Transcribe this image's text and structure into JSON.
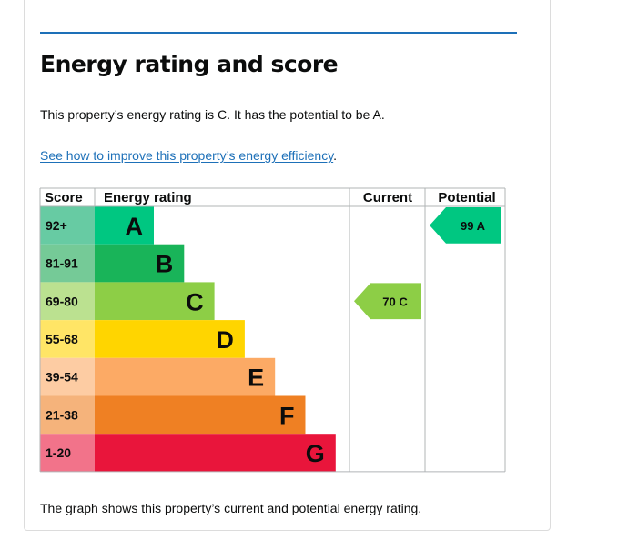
{
  "heading": "Energy rating and score",
  "summary": "This property’s energy rating is C. It has the potential to be A.",
  "improve_link": "See how to improve this property’s energy efficiency",
  "improve_suffix": ".",
  "footer": "The graph shows this property’s current and potential energy rating.",
  "colors": {
    "rule": "#1d70b8",
    "link": "#1d70b8"
  },
  "chart_data": {
    "type": "bar",
    "columns": [
      "Score",
      "Energy rating",
      "Current",
      "Potential"
    ],
    "bands": [
      {
        "score": "92+",
        "letter": "A",
        "color": "#00c781",
        "tint": "#67cba3"
      },
      {
        "score": "81-91",
        "letter": "B",
        "color": "#19b459",
        "tint": "#75ca97"
      },
      {
        "score": "69-80",
        "letter": "C",
        "color": "#8dce46",
        "tint": "#bbe190"
      },
      {
        "score": "55-68",
        "letter": "D",
        "color": "#ffd500",
        "tint": "#ffe566"
      },
      {
        "score": "39-54",
        "letter": "E",
        "color": "#fcaa65",
        "tint": "#fdcca3"
      },
      {
        "score": "21-38",
        "letter": "F",
        "color": "#ef8023",
        "tint": "#f5b37b"
      },
      {
        "score": "1-20",
        "letter": "G",
        "color": "#e9153b",
        "tint": "#f2738a"
      }
    ],
    "current": {
      "value": 70,
      "band": "C",
      "label": "70 C"
    },
    "potential": {
      "value": 99,
      "band": "A",
      "label": "99 A"
    }
  }
}
